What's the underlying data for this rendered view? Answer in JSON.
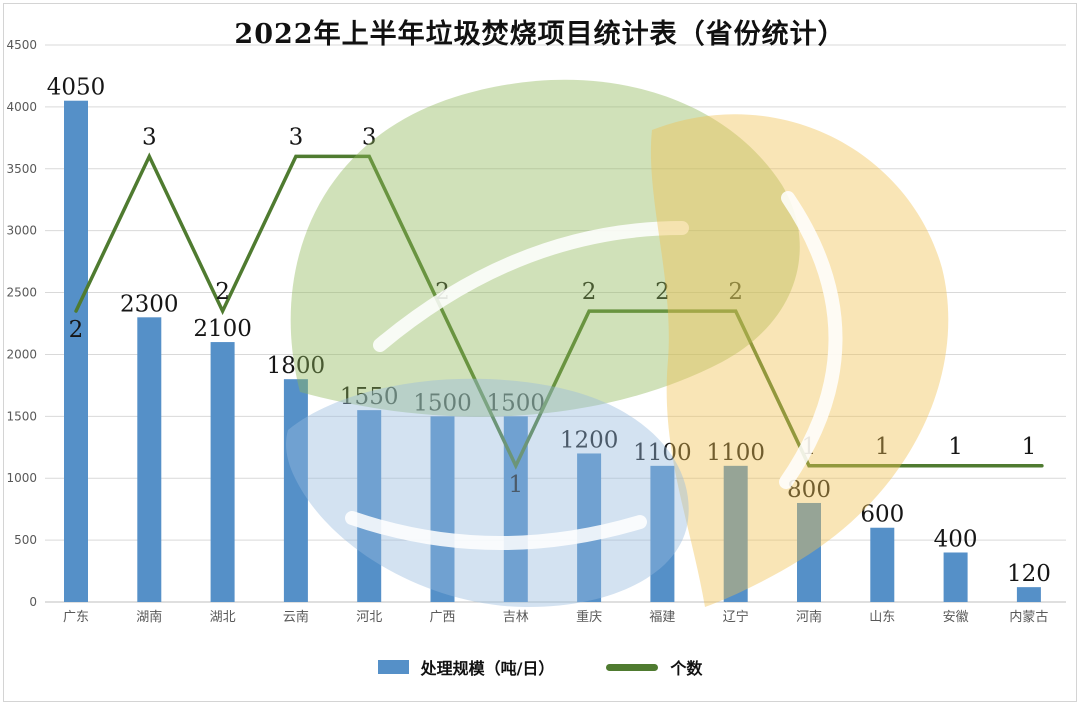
{
  "title": "2022年上半年垃圾焚烧项目统计表（省份统计）",
  "legend": {
    "bar_label": "处理规模（吨/日）",
    "line_label": "个数"
  },
  "colors": {
    "bar": "#5590c8",
    "line": "#4f7b30",
    "axis_text": "#595959",
    "gridline": "#d9d9d9",
    "watermark_green": "#90b859",
    "watermark_yellow": "#f0c150",
    "watermark_blue": "#95bbde"
  },
  "chart_data": {
    "type": "combo-bar-line",
    "title": "2022年上半年垃圾焚烧项目统计表（省份统计）",
    "categories": [
      "广东",
      "湖南",
      "湖北",
      "云南",
      "河北",
      "广西",
      "吉林",
      "重庆",
      "福建",
      "辽宁",
      "河南",
      "山东",
      "安徽",
      "内蒙古"
    ],
    "series": [
      {
        "name": "处理规模（吨/日）",
        "type": "bar",
        "color": "#5590c8",
        "values": [
          4050,
          2300,
          2100,
          1800,
          1550,
          1500,
          1500,
          1200,
          1100,
          1100,
          800,
          600,
          400,
          120
        ]
      },
      {
        "name": "个数",
        "type": "line",
        "color": "#4f7b30",
        "values": [
          2,
          3,
          2,
          3,
          3,
          2,
          1,
          2,
          2,
          2,
          1,
          1,
          1,
          1
        ]
      }
    ],
    "xlabel": "",
    "ylabel": "",
    "ylim": [
      0,
      4500
    ],
    "y_ticks": [
      0,
      500,
      1000,
      1500,
      2000,
      2500,
      3000,
      3500,
      4000,
      4500
    ],
    "grid": true,
    "legend_position": "bottom",
    "data_labels": true
  }
}
